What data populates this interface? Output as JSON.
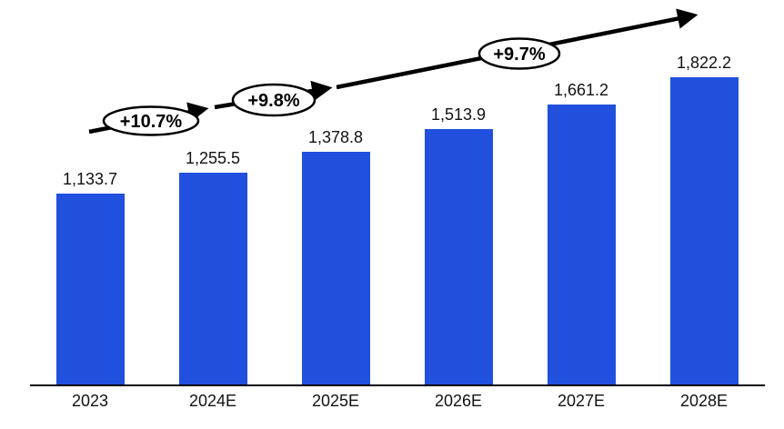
{
  "chart_data": {
    "type": "bar",
    "title": "",
    "xlabel": "",
    "ylabel": "",
    "categories": [
      "2023",
      "2024E",
      "2025E",
      "2026E",
      "2027E",
      "2028E"
    ],
    "values": [
      1133.7,
      1255.5,
      1378.8,
      1513.9,
      1661.2,
      1822.2
    ],
    "value_labels": [
      "1,133.7",
      "1,255.5",
      "1,378.8",
      "1,513.9",
      "1,661.2",
      "1,822.2"
    ],
    "growth_annotations": [
      {
        "label": "+10.7%"
      },
      {
        "label": "+9.8%"
      },
      {
        "label": "+9.7%"
      }
    ],
    "ylim": [
      0,
      1900
    ],
    "grid": false,
    "legend": "none",
    "colors": {
      "bar": "#2150DE",
      "axis": "#000000",
      "arrow": "#000000",
      "ellipse_fill": "#FFFFFF",
      "ellipse_stroke": "#000000",
      "label_text": "#111111"
    }
  }
}
